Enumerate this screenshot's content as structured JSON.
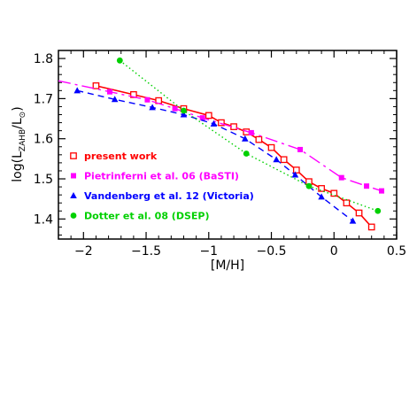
{
  "chart_data": {
    "type": "line",
    "xlabel": "[M/H]",
    "ylabel": {
      "prefix": "log(L",
      "subscript": "ZAHB",
      "middle": "/L",
      "sun_subscript": "⊙",
      "suffix": ")"
    },
    "xlim": [
      -2.2,
      0.5
    ],
    "ylim": [
      1.35,
      1.82
    ],
    "xticks": [
      -2,
      -1.5,
      -1,
      -0.5,
      0,
      0.5
    ],
    "xtick_labels": [
      "−2",
      "−1.5",
      "−1",
      "−0.5",
      "0",
      "0.5"
    ],
    "yticks": [
      1.4,
      1.5,
      1.6,
      1.7,
      1.8
    ],
    "ytick_labels": [
      "1.4",
      "1.5",
      "1.6",
      "1.7",
      "1.8"
    ],
    "grid": false,
    "legend_position": "bottom-left",
    "series": [
      {
        "name": "present work",
        "color": "#ff0000",
        "line": "solid",
        "marker": "open-square",
        "x": [
          -1.9,
          -1.6,
          -1.4,
          -1.2,
          -1.0,
          -0.9,
          -0.8,
          -0.7,
          -0.6,
          -0.5,
          -0.4,
          -0.3,
          -0.2,
          -0.1,
          0.0,
          0.1,
          0.2,
          0.3
        ],
        "y": [
          1.732,
          1.71,
          1.695,
          1.675,
          1.658,
          1.64,
          1.63,
          1.617,
          1.598,
          1.578,
          1.548,
          1.522,
          1.493,
          1.476,
          1.464,
          1.44,
          1.415,
          1.38
        ]
      },
      {
        "name": "Pietrinferni et al. 06 (BaSTI)",
        "color": "#ff00ff",
        "line": "long-dash",
        "marker": "filled-square",
        "x_extent": [
          -2.2,
          0.38
        ],
        "x": [
          -1.79,
          -1.49,
          -1.27,
          -1.05,
          -0.66,
          -0.27,
          0.06,
          0.26,
          0.38
        ],
        "y": [
          1.717,
          1.697,
          1.675,
          1.652,
          1.615,
          1.573,
          1.503,
          1.482,
          1.47
        ]
      },
      {
        "name": "Vandenberg et al. 12 (Victoria)",
        "color": "#0000ff",
        "line": "dashed",
        "marker": "filled-triangle",
        "x": [
          -2.05,
          -1.75,
          -1.45,
          -1.2,
          -0.96,
          -0.71,
          -0.46,
          -0.31,
          -0.1,
          0.15
        ],
        "y": [
          1.72,
          1.698,
          1.678,
          1.66,
          1.637,
          1.6,
          1.548,
          1.51,
          1.455,
          1.395
        ]
      },
      {
        "name": "Dotter et al. 08 (DSEP)",
        "color": "#00d000",
        "line": "dotted",
        "marker": "filled-circle",
        "x": [
          -1.71,
          -1.2,
          -0.7,
          -0.2,
          0.35
        ],
        "y": [
          1.795,
          1.67,
          1.563,
          1.482,
          1.42
        ]
      }
    ]
  }
}
